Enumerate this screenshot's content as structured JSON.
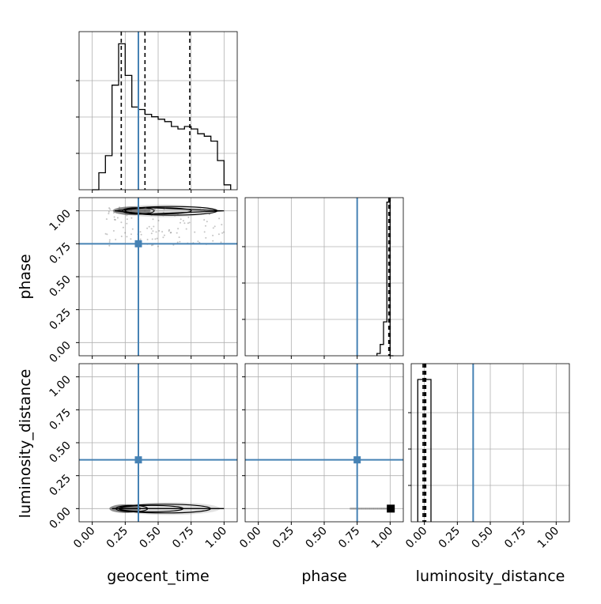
{
  "chart_data": {
    "type": "corner",
    "parameters": [
      "geocent_time",
      "phase",
      "luminosity_distance"
    ],
    "axis_labels": [
      "geocent_time",
      "phase",
      "luminosity_distance"
    ],
    "tick_labels": [
      "0.00",
      "0.25",
      "0.50",
      "0.75",
      "1.00"
    ],
    "ranges": {
      "geocent_time": [
        -0.1,
        1.1
      ],
      "phase": [
        -0.1,
        1.1
      ],
      "luminosity_distance": [
        -0.1,
        1.1
      ]
    },
    "truth": {
      "geocent_time": 0.35,
      "phase": 0.75,
      "luminosity_distance": 0.37
    },
    "quantiles": {
      "geocent_time": [
        0.22,
        0.4,
        0.74
      ],
      "phase": [
        0.99,
        0.995,
        1.0
      ],
      "luminosity_distance": [
        -0.01,
        0.0,
        0.01
      ]
    },
    "histograms": {
      "geocent_time": {
        "edges": [
          0.0,
          0.05,
          0.1,
          0.15,
          0.2,
          0.25,
          0.3,
          0.35,
          0.4,
          0.45,
          0.5,
          0.55,
          0.6,
          0.65,
          0.7,
          0.75,
          0.8,
          0.85,
          0.9,
          0.95,
          1.0,
          1.05
        ],
        "values": [
          0.0,
          0.07,
          0.14,
          0.43,
          0.6,
          0.47,
          0.34,
          0.33,
          0.31,
          0.3,
          0.29,
          0.28,
          0.26,
          0.25,
          0.26,
          0.25,
          0.23,
          0.22,
          0.2,
          0.12,
          0.02
        ],
        "ymax": 0.65
      },
      "phase": {
        "edges": [
          0.9,
          0.925,
          0.95,
          0.975,
          1.0,
          1.025
        ],
        "values": [
          0.01,
          0.05,
          0.15,
          0.68,
          0.0
        ],
        "ymax": 0.7
      },
      "luminosity_distance": {
        "edges": [
          -0.05,
          0.0,
          0.05
        ],
        "values": [
          0.9,
          0.9
        ],
        "ymax": 1.0
      }
    },
    "grid": true,
    "truth_color": "#4682b4",
    "line_color": "#000000"
  }
}
